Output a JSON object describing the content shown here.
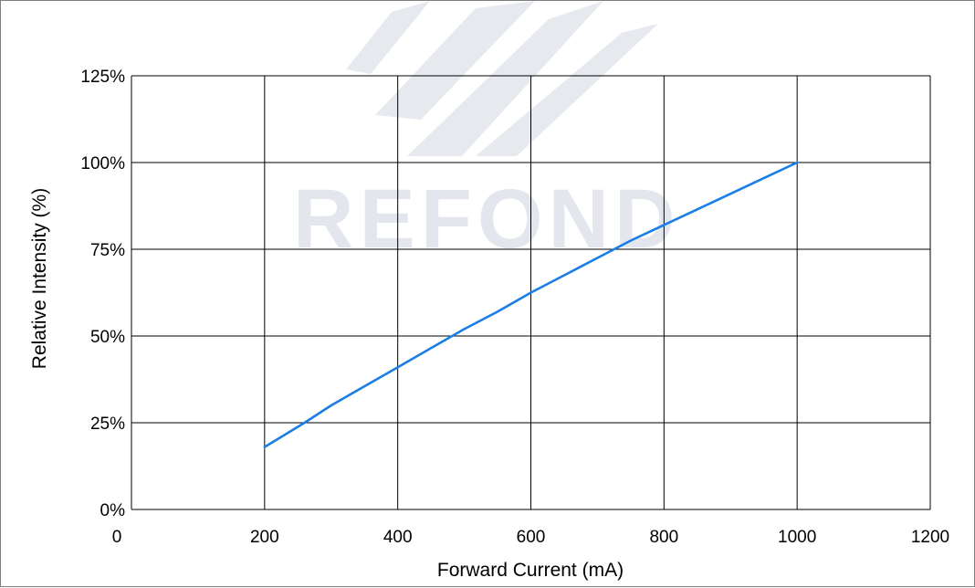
{
  "watermark": {
    "text": "REFOND",
    "color": "#e3e6ec"
  },
  "chart_data": {
    "type": "line",
    "title": "",
    "xlabel": "Forward Current (mA)",
    "ylabel": "Relative Intensity (%)",
    "xlim": [
      0,
      1200
    ],
    "ylim": [
      0,
      125
    ],
    "x_ticks": [
      0,
      200,
      400,
      600,
      800,
      1000,
      1200
    ],
    "y_ticks": [
      0,
      25,
      50,
      75,
      100,
      125
    ],
    "x_tick_labels": [
      "0",
      "200",
      "400",
      "600",
      "800",
      "1000",
      "1200"
    ],
    "y_tick_labels": [
      "0%",
      "25%",
      "50%",
      "75%",
      "100%",
      "125%"
    ],
    "grid": true,
    "line_color": "#1a7ee6",
    "series": [
      {
        "x": [
          200,
          260,
          300,
          350,
          400,
          450,
          500,
          550,
          600,
          650,
          700,
          750,
          800,
          850,
          900,
          950,
          1000
        ],
        "values": [
          18,
          25,
          30,
          35.5,
          41,
          46.5,
          52,
          57,
          62.5,
          67.5,
          72.5,
          77.5,
          82,
          86.5,
          91,
          95.5,
          100
        ]
      }
    ]
  }
}
